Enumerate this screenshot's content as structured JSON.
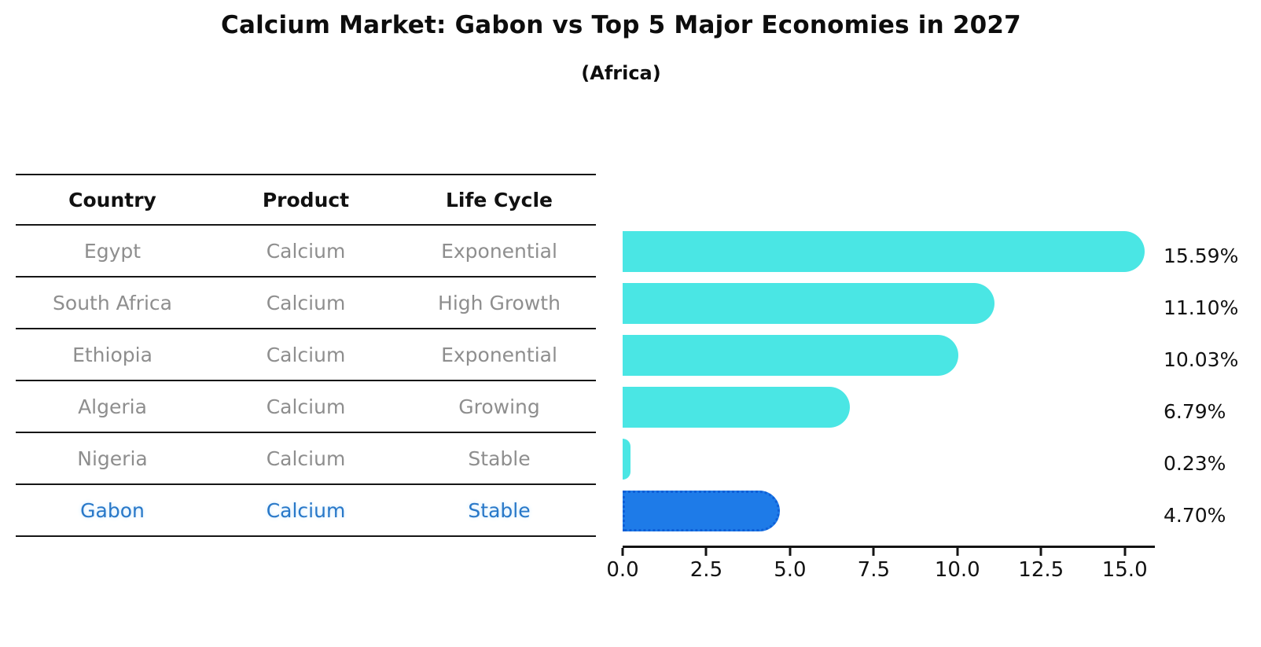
{
  "header": {
    "title": "Calcium Market: Gabon vs Top 5 Major Economies in 2027",
    "subtitle": "(Africa)"
  },
  "table": {
    "columns": [
      "Country",
      "Product",
      "Life Cycle"
    ],
    "rows": [
      {
        "country": "Egypt",
        "product": "Calcium",
        "life_cycle": "Exponential"
      },
      {
        "country": "South Africa",
        "product": "Calcium",
        "life_cycle": "High Growth"
      },
      {
        "country": "Ethiopia",
        "product": "Calcium",
        "life_cycle": "Exponential"
      },
      {
        "country": "Algeria",
        "product": "Calcium",
        "life_cycle": "Growing"
      },
      {
        "country": "Nigeria",
        "product": "Calcium",
        "life_cycle": "Stable"
      },
      {
        "country": "Gabon",
        "product": "Calcium",
        "life_cycle": "Stable"
      }
    ]
  },
  "chart_data": {
    "type": "bar",
    "orientation": "horizontal",
    "title": "Calcium Market: Gabon vs Top 5 Major Economies in 2027",
    "subtitle": "(Africa)",
    "categories": [
      "Egypt",
      "South Africa",
      "Ethiopia",
      "Algeria",
      "Nigeria",
      "Gabon"
    ],
    "values": [
      15.59,
      11.1,
      10.03,
      6.79,
      0.23,
      4.7
    ],
    "value_labels": [
      "15.59%",
      "11.10%",
      "10.03%",
      "6.79%",
      "0.23%",
      "4.70%"
    ],
    "xlabel": "",
    "ylabel": "",
    "xlim": [
      0,
      15.9
    ],
    "x_ticks": [
      "0.0",
      "2.5",
      "5.0",
      "7.5",
      "10.0",
      "12.5",
      "15.0"
    ],
    "grid": false,
    "legend": false,
    "bar_color": "#4AE6E4",
    "highlight": {
      "index": 5,
      "category": "Gabon",
      "color": "#1E7BE8",
      "border_color": "#0F5FD7",
      "border_style": "dotted"
    },
    "colors": {
      "table_text": "#8E8E8E",
      "header_text": "#111111",
      "highlight_text": "#2878C8",
      "axis": "#141414"
    }
  }
}
